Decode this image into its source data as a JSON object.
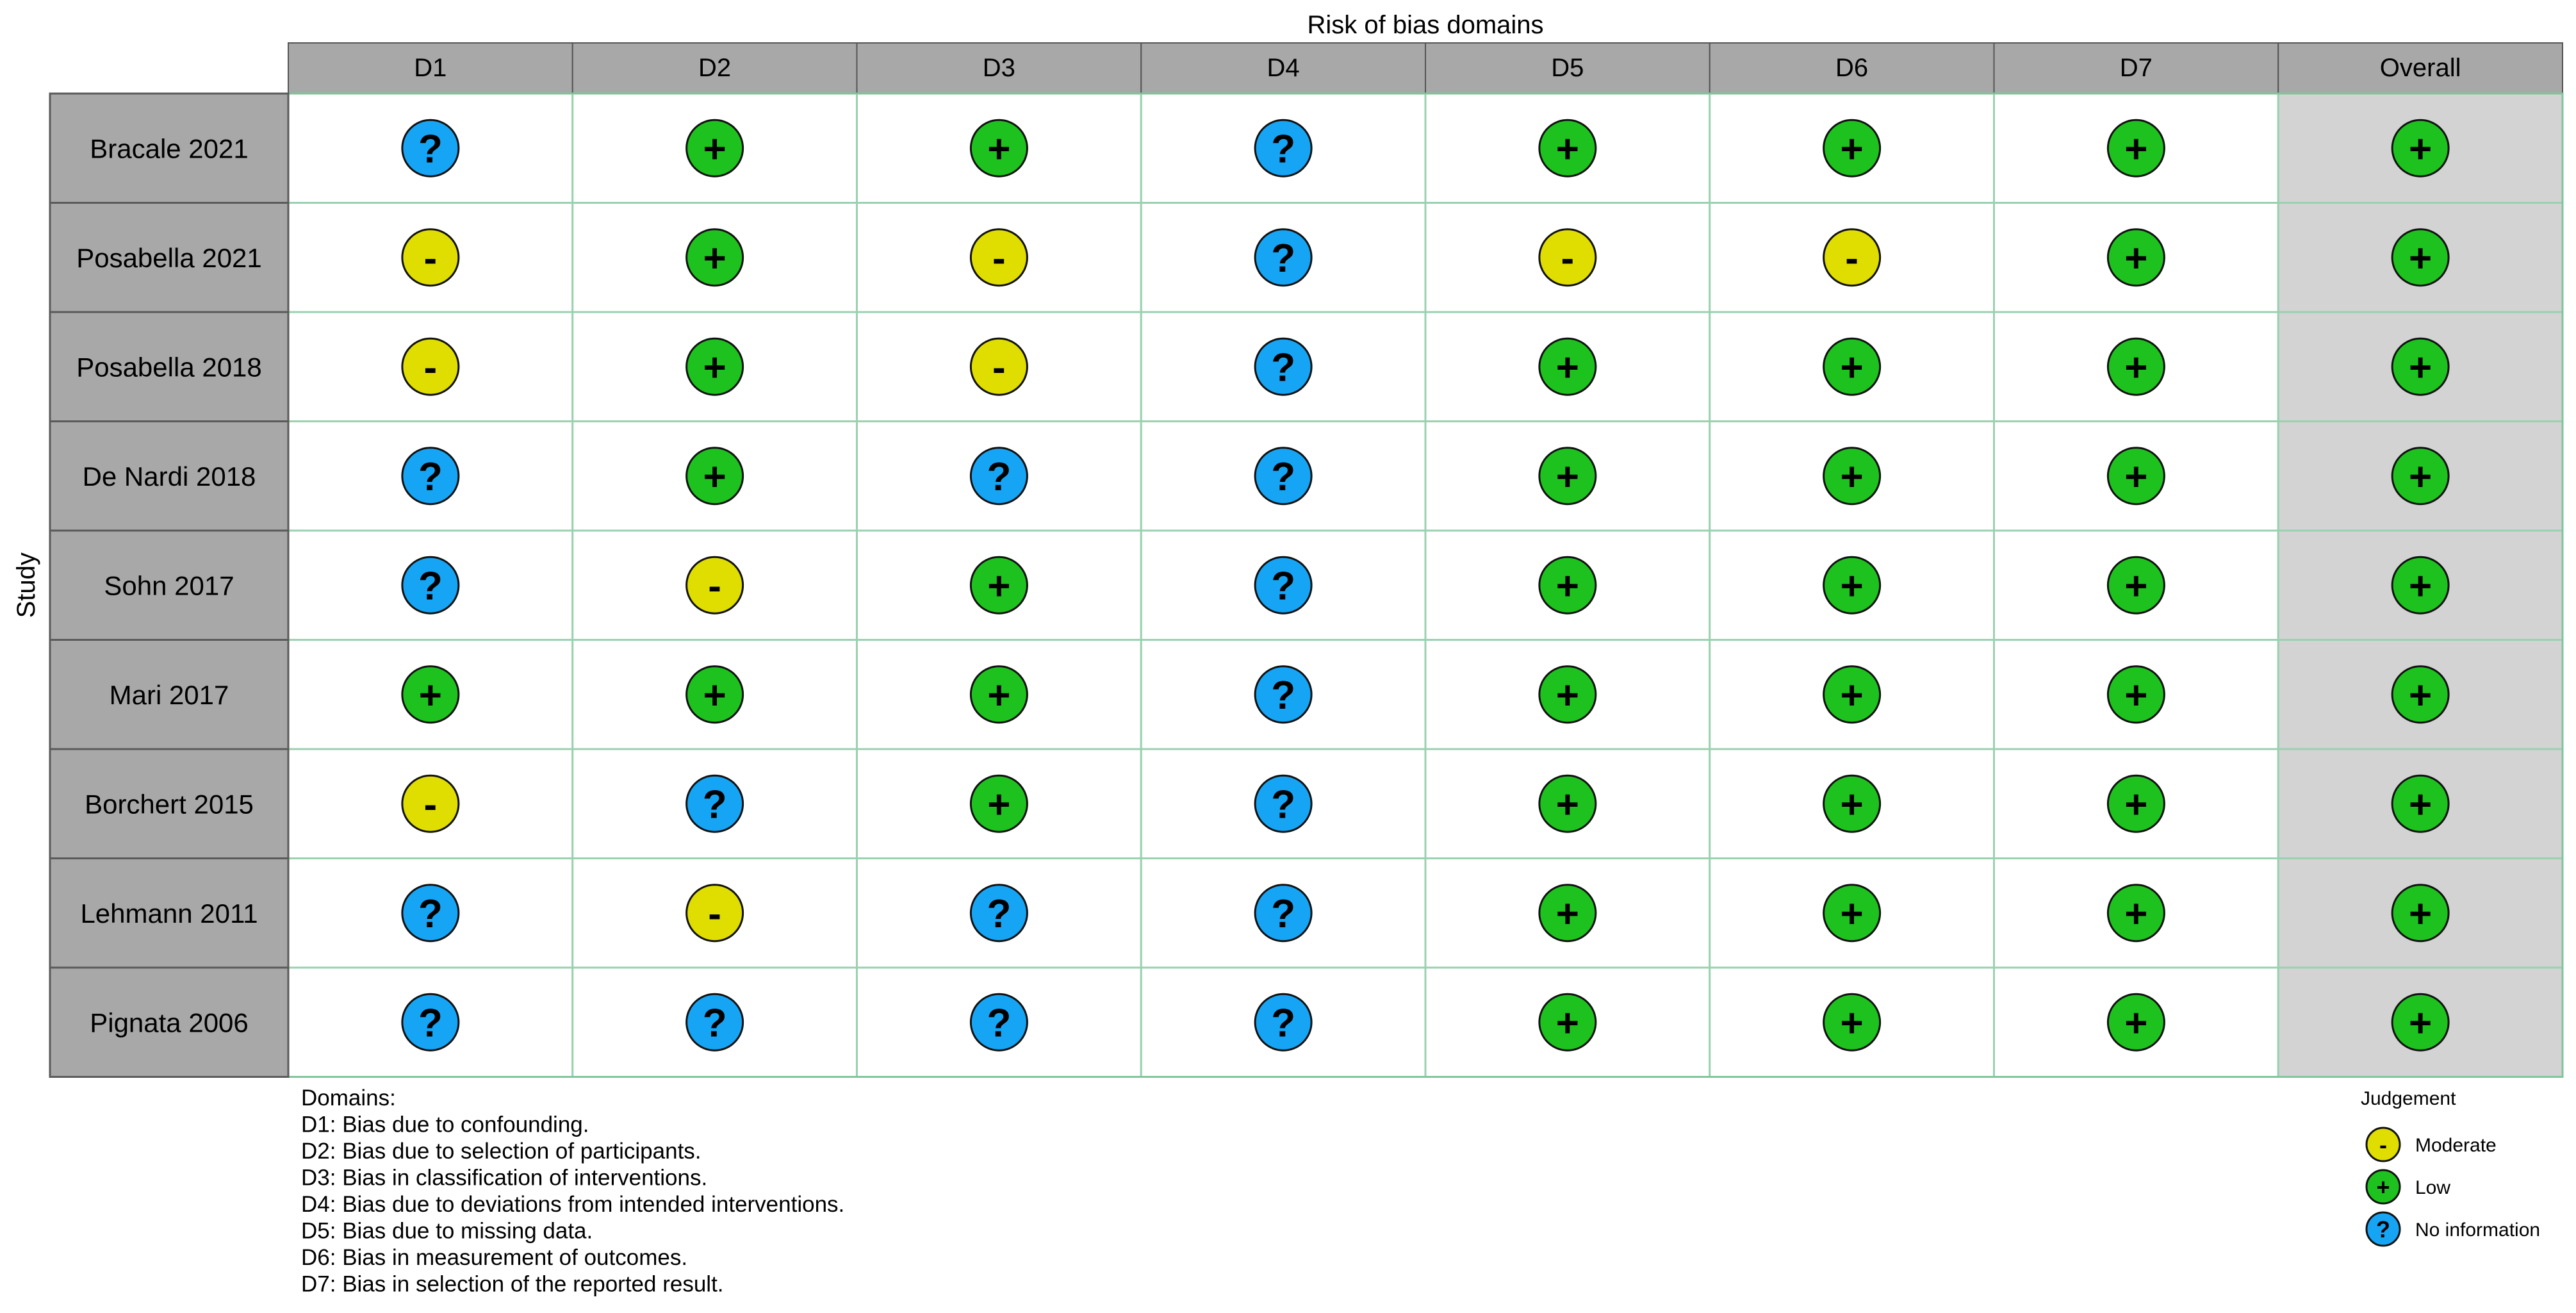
{
  "chart_data": {
    "type": "table",
    "title": "Risk of bias domains",
    "ylabel": "Study",
    "columns": [
      "D1",
      "D2",
      "D3",
      "D4",
      "D5",
      "D6",
      "D7",
      "Overall"
    ],
    "studies": [
      {
        "name": "Bracale 2021",
        "ratings": [
          "no_info",
          "low",
          "low",
          "no_info",
          "low",
          "low",
          "low",
          "low"
        ]
      },
      {
        "name": "Posabella 2021",
        "ratings": [
          "moderate",
          "low",
          "moderate",
          "no_info",
          "moderate",
          "moderate",
          "low",
          "low"
        ]
      },
      {
        "name": "Posabella 2018",
        "ratings": [
          "moderate",
          "low",
          "moderate",
          "no_info",
          "low",
          "low",
          "low",
          "low"
        ]
      },
      {
        "name": "De Nardi 2018",
        "ratings": [
          "no_info",
          "low",
          "no_info",
          "no_info",
          "low",
          "low",
          "low",
          "low"
        ]
      },
      {
        "name": "Sohn 2017",
        "ratings": [
          "no_info",
          "moderate",
          "low",
          "no_info",
          "low",
          "low",
          "low",
          "low"
        ]
      },
      {
        "name": "Mari 2017",
        "ratings": [
          "low",
          "low",
          "low",
          "no_info",
          "low",
          "low",
          "low",
          "low"
        ]
      },
      {
        "name": "Borchert 2015",
        "ratings": [
          "moderate",
          "no_info",
          "low",
          "no_info",
          "low",
          "low",
          "low",
          "low"
        ]
      },
      {
        "name": "Lehmann 2011",
        "ratings": [
          "no_info",
          "moderate",
          "no_info",
          "no_info",
          "low",
          "low",
          "low",
          "low"
        ]
      },
      {
        "name": "Pignata 2006",
        "ratings": [
          "no_info",
          "no_info",
          "no_info",
          "no_info",
          "low",
          "low",
          "low",
          "low"
        ]
      }
    ],
    "judgements": {
      "moderate": {
        "symbol": "-",
        "label": "Moderate",
        "color": "#e0dd00"
      },
      "low": {
        "symbol": "+",
        "label": "Low",
        "color": "#1ec21e"
      },
      "no_info": {
        "symbol": "?",
        "label": "No information",
        "color": "#16a5f5"
      }
    },
    "legend_title": "Judgement",
    "legend_order": [
      "moderate",
      "low",
      "no_info"
    ],
    "domains_title": "Domains:",
    "domains": [
      "D1: Bias due to confounding.",
      "D2: Bias due to selection of participants.",
      "D3: Bias in classification of interventions.",
      "D4: Bias due to deviations from intended interventions.",
      "D5: Bias due to missing data.",
      "D6: Bias in measurement of outcomes.",
      "D7: Bias in selection of the reported result."
    ],
    "colors": {
      "header_fill": "#a8a8a8",
      "study_fill": "#a8a8a8",
      "overall_fill": "#d3d3d3",
      "cell_fill": "#ffffff"
    }
  }
}
